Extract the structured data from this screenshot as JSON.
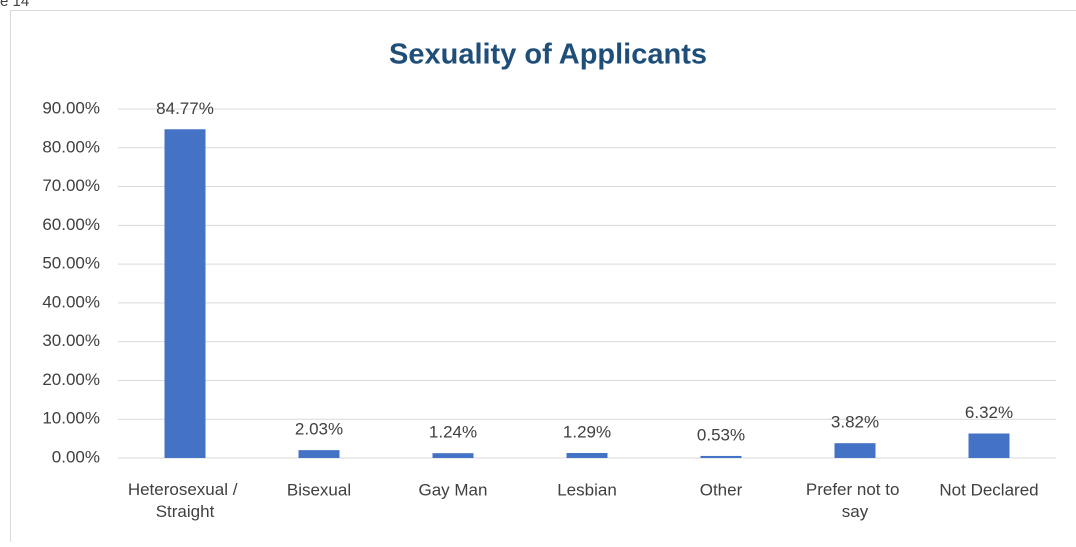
{
  "caption": "e 14",
  "chart_data": {
    "type": "bar",
    "title": "Sexuality of Applicants",
    "categories": [
      "Heterosexual / Straight",
      "Bisexual",
      "Gay Man",
      "Lesbian",
      "Other",
      "Prefer not to say",
      "Not Declared"
    ],
    "values": [
      84.77,
      2.03,
      1.24,
      1.29,
      0.53,
      3.82,
      6.32
    ],
    "value_labels": [
      "84.77%",
      "2.03%",
      "1.24%",
      "1.29%",
      "0.53%",
      "3.82%",
      "6.32%"
    ],
    "color": "#4472c4",
    "ylim": [
      0,
      90
    ],
    "yticks": [
      {
        "value": 0,
        "label": "0.00%"
      },
      {
        "value": 10,
        "label": "10.00%"
      },
      {
        "value": 20,
        "label": "20.00%"
      },
      {
        "value": 30,
        "label": "30.00%"
      },
      {
        "value": 40,
        "label": "40.00%"
      },
      {
        "value": 50,
        "label": "50.00%"
      },
      {
        "value": 60,
        "label": "60.00%"
      },
      {
        "value": 70,
        "label": "70.00%"
      },
      {
        "value": 80,
        "label": "80.00%"
      },
      {
        "value": 90,
        "label": "90.00%"
      }
    ],
    "grid": true
  }
}
